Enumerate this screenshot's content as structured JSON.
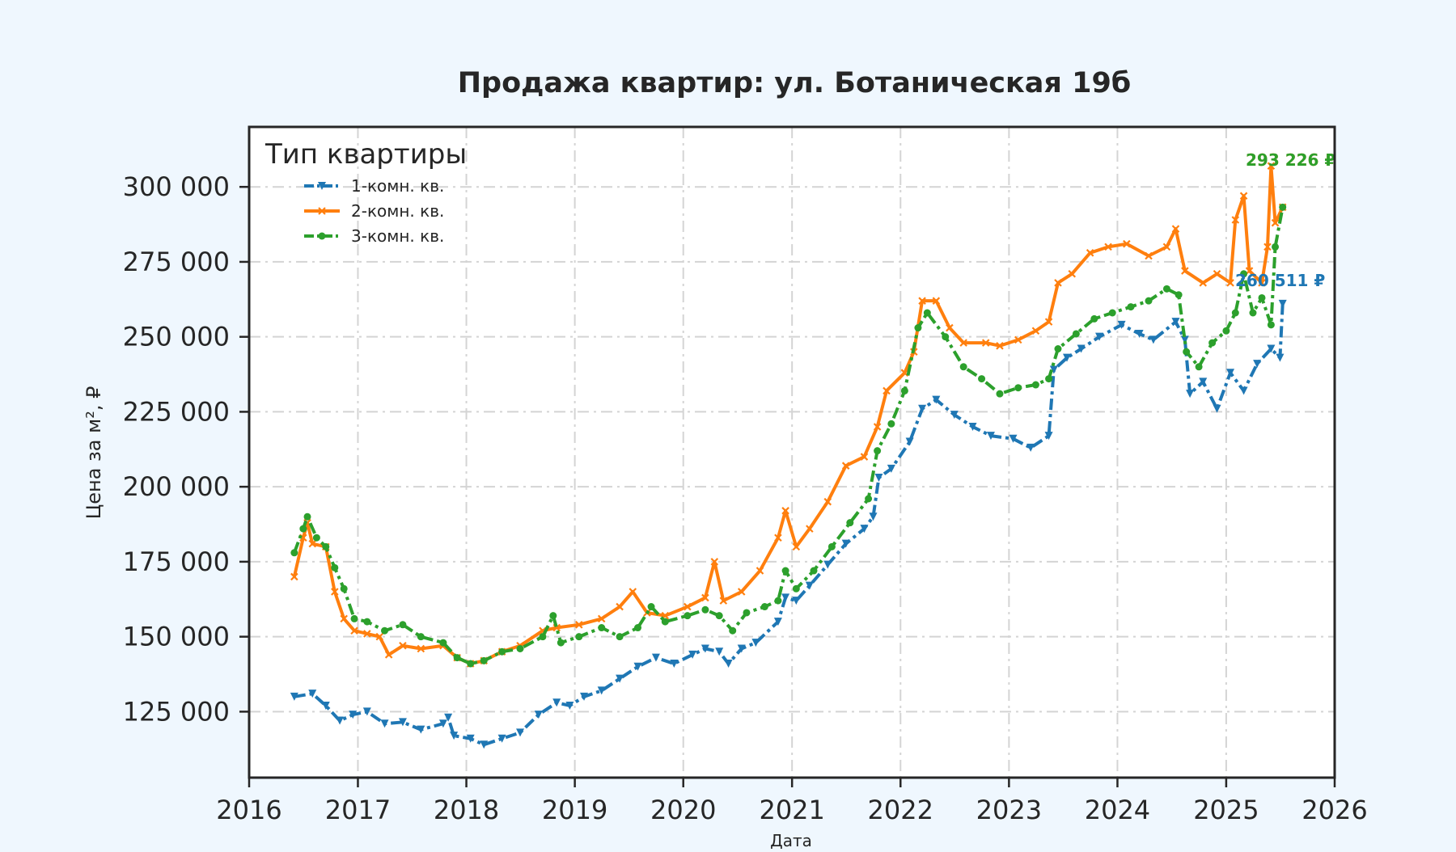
{
  "colors": {
    "background": "#eff7fe",
    "plot_background": "#ffffff",
    "grid": "#d4d4d4",
    "axis": "#262626",
    "text": "#262626"
  },
  "chart_data": {
    "type": "line",
    "title": "Продажа квартир: ул. Ботаническая 19б",
    "xlabel": "Дата",
    "ylabel": "Цена за м², ₽",
    "x_type": "date",
    "xlim": [
      "2016-01-01",
      "2026-01-01"
    ],
    "ylim": [
      103000,
      320000
    ],
    "x_ticks": [
      "2016",
      "2017",
      "2018",
      "2019",
      "2020",
      "2021",
      "2022",
      "2023",
      "2024",
      "2025",
      "2026"
    ],
    "y_ticks": [
      {
        "value": 125000,
        "label": "125 000"
      },
      {
        "value": 150000,
        "label": "150 000"
      },
      {
        "value": 175000,
        "label": "175 000"
      },
      {
        "value": 200000,
        "label": "200 000"
      },
      {
        "value": 225000,
        "label": "225 000"
      },
      {
        "value": 250000,
        "label": "250 000"
      },
      {
        "value": 275000,
        "label": "275 000"
      },
      {
        "value": 300000,
        "label": "300 000"
      }
    ],
    "grid": true,
    "legend": {
      "title": "Тип квартиры",
      "position": "top-left"
    },
    "series": [
      {
        "name": "1-комн. кв.",
        "color": "#1f77b4",
        "marker": "triangle-down",
        "end_label": "260 511 ₽",
        "points": [
          [
            "2016-06-01",
            130000
          ],
          [
            "2016-08-01",
            131000
          ],
          [
            "2016-09-15",
            127000
          ],
          [
            "2016-11-01",
            122000
          ],
          [
            "2016-12-15",
            124000
          ],
          [
            "2017-02-01",
            125000
          ],
          [
            "2017-04-01",
            121000
          ],
          [
            "2017-06-01",
            121500
          ],
          [
            "2017-08-01",
            119000
          ],
          [
            "2017-10-15",
            121000
          ],
          [
            "2017-11-01",
            123000
          ],
          [
            "2017-11-20",
            117000
          ],
          [
            "2018-01-15",
            116000
          ],
          [
            "2018-03-01",
            114000
          ],
          [
            "2018-05-01",
            116000
          ],
          [
            "2018-07-01",
            118000
          ],
          [
            "2018-09-01",
            124000
          ],
          [
            "2018-11-01",
            128000
          ],
          [
            "2018-12-15",
            127000
          ],
          [
            "2019-02-01",
            130000
          ],
          [
            "2019-04-01",
            132000
          ],
          [
            "2019-06-01",
            136000
          ],
          [
            "2019-08-01",
            140000
          ],
          [
            "2019-10-01",
            143000
          ],
          [
            "2019-12-01",
            141000
          ],
          [
            "2020-02-01",
            144000
          ],
          [
            "2020-03-15",
            146000
          ],
          [
            "2020-05-01",
            145000
          ],
          [
            "2020-06-01",
            141000
          ],
          [
            "2020-07-15",
            146000
          ],
          [
            "2020-09-01",
            148000
          ],
          [
            "2020-11-15",
            155000
          ],
          [
            "2020-12-10",
            163000
          ],
          [
            "2021-01-15",
            162000
          ],
          [
            "2021-03-01",
            167000
          ],
          [
            "2021-05-01",
            174000
          ],
          [
            "2021-07-01",
            181000
          ],
          [
            "2021-09-01",
            186000
          ],
          [
            "2021-10-01",
            190000
          ],
          [
            "2021-10-20",
            203000
          ],
          [
            "2021-12-01",
            206000
          ],
          [
            "2022-02-01",
            215000
          ],
          [
            "2022-03-15",
            226000
          ],
          [
            "2022-05-01",
            229000
          ],
          [
            "2022-07-01",
            224000
          ],
          [
            "2022-09-01",
            220000
          ],
          [
            "2022-11-01",
            217000
          ],
          [
            "2023-01-15",
            216000
          ],
          [
            "2023-03-15",
            213000
          ],
          [
            "2023-05-15",
            217000
          ],
          [
            "2023-06-01",
            239000
          ],
          [
            "2023-07-15",
            243000
          ],
          [
            "2023-09-01",
            246000
          ],
          [
            "2023-11-01",
            250000
          ],
          [
            "2024-01-15",
            254000
          ],
          [
            "2024-03-15",
            251000
          ],
          [
            "2024-05-01",
            249000
          ],
          [
            "2024-07-15",
            255000
          ],
          [
            "2024-08-15",
            249000
          ],
          [
            "2024-09-01",
            231000
          ],
          [
            "2024-10-15",
            235000
          ],
          [
            "2024-12-01",
            226000
          ],
          [
            "2025-01-15",
            238000
          ],
          [
            "2025-03-01",
            232000
          ],
          [
            "2025-04-15",
            241000
          ],
          [
            "2025-06-01",
            246000
          ],
          [
            "2025-07-01",
            243000
          ],
          [
            "2025-07-10",
            261000
          ]
        ]
      },
      {
        "name": "2-комн. кв.",
        "color": "#ff7f0e",
        "marker": "x",
        "end_label": "293 226 ₽",
        "points": [
          [
            "2016-06-01",
            170000
          ],
          [
            "2016-07-01",
            183000
          ],
          [
            "2016-07-15",
            188000
          ],
          [
            "2016-08-01",
            181000
          ],
          [
            "2016-09-15",
            180000
          ],
          [
            "2016-10-15",
            165000
          ],
          [
            "2016-11-15",
            156000
          ],
          [
            "2016-12-20",
            152000
          ],
          [
            "2017-02-01",
            151000
          ],
          [
            "2017-03-15",
            150000
          ],
          [
            "2017-04-15",
            144000
          ],
          [
            "2017-06-01",
            147000
          ],
          [
            "2017-08-01",
            146000
          ],
          [
            "2017-10-15",
            147000
          ],
          [
            "2017-12-01",
            143000
          ],
          [
            "2018-01-15",
            141000
          ],
          [
            "2018-03-01",
            142000
          ],
          [
            "2018-05-01",
            145000
          ],
          [
            "2018-07-01",
            147000
          ],
          [
            "2018-09-15",
            152000
          ],
          [
            "2018-11-01",
            153000
          ],
          [
            "2019-01-15",
            154000
          ],
          [
            "2019-04-01",
            156000
          ],
          [
            "2019-06-01",
            160000
          ],
          [
            "2019-07-15",
            165000
          ],
          [
            "2019-09-01",
            158000
          ],
          [
            "2019-11-01",
            157000
          ],
          [
            "2020-01-15",
            160000
          ],
          [
            "2020-03-15",
            163000
          ],
          [
            "2020-04-15",
            175000
          ],
          [
            "2020-05-15",
            162000
          ],
          [
            "2020-07-15",
            165000
          ],
          [
            "2020-09-15",
            172000
          ],
          [
            "2020-11-15",
            183000
          ],
          [
            "2020-12-10",
            192000
          ],
          [
            "2021-01-15",
            180000
          ],
          [
            "2021-03-01",
            186000
          ],
          [
            "2021-05-01",
            195000
          ],
          [
            "2021-07-01",
            207000
          ],
          [
            "2021-09-01",
            210000
          ],
          [
            "2021-10-15",
            220000
          ],
          [
            "2021-11-15",
            232000
          ],
          [
            "2022-01-15",
            238000
          ],
          [
            "2022-02-15",
            245000
          ],
          [
            "2022-03-15",
            262000
          ],
          [
            "2022-05-01",
            262000
          ],
          [
            "2022-06-15",
            253000
          ],
          [
            "2022-08-01",
            248000
          ],
          [
            "2022-10-15",
            248000
          ],
          [
            "2022-12-01",
            247000
          ],
          [
            "2023-02-01",
            249000
          ],
          [
            "2023-04-01",
            252000
          ],
          [
            "2023-05-15",
            255000
          ],
          [
            "2023-06-15",
            268000
          ],
          [
            "2023-08-01",
            271000
          ],
          [
            "2023-10-01",
            278000
          ],
          [
            "2023-12-01",
            280000
          ],
          [
            "2024-02-01",
            281000
          ],
          [
            "2024-04-15",
            277000
          ],
          [
            "2024-06-15",
            280000
          ],
          [
            "2024-07-15",
            286000
          ],
          [
            "2024-08-15",
            272000
          ],
          [
            "2024-10-15",
            268000
          ],
          [
            "2024-12-01",
            271000
          ],
          [
            "2025-01-15",
            268000
          ],
          [
            "2025-02-01",
            289000
          ],
          [
            "2025-03-01",
            297000
          ],
          [
            "2025-03-20",
            272000
          ],
          [
            "2025-05-01",
            268000
          ],
          [
            "2025-05-20",
            280000
          ],
          [
            "2025-06-01",
            307000
          ],
          [
            "2025-06-15",
            288000
          ],
          [
            "2025-07-10",
            293226
          ]
        ]
      },
      {
        "name": "3-комн. кв.",
        "color": "#2ca02c",
        "marker": "circle",
        "end_label": "293 226 ₽",
        "points": [
          [
            "2016-06-01",
            178000
          ],
          [
            "2016-07-01",
            186000
          ],
          [
            "2016-07-15",
            190000
          ],
          [
            "2016-08-15",
            183000
          ],
          [
            "2016-09-15",
            180000
          ],
          [
            "2016-10-15",
            173000
          ],
          [
            "2016-11-15",
            166000
          ],
          [
            "2016-12-20",
            156000
          ],
          [
            "2017-02-01",
            155000
          ],
          [
            "2017-04-01",
            152000
          ],
          [
            "2017-06-01",
            154000
          ],
          [
            "2017-08-01",
            150000
          ],
          [
            "2017-10-15",
            148000
          ],
          [
            "2017-12-01",
            143000
          ],
          [
            "2018-01-15",
            141000
          ],
          [
            "2018-03-01",
            142000
          ],
          [
            "2018-05-01",
            145000
          ],
          [
            "2018-07-01",
            146000
          ],
          [
            "2018-09-15",
            150000
          ],
          [
            "2018-10-20",
            157000
          ],
          [
            "2018-11-15",
            148000
          ],
          [
            "2019-01-15",
            150000
          ],
          [
            "2019-04-01",
            153000
          ],
          [
            "2019-06-01",
            150000
          ],
          [
            "2019-08-01",
            153000
          ],
          [
            "2019-09-15",
            160000
          ],
          [
            "2019-11-01",
            155000
          ],
          [
            "2020-01-15",
            157000
          ],
          [
            "2020-03-15",
            159000
          ],
          [
            "2020-05-01",
            157000
          ],
          [
            "2020-06-15",
            152000
          ],
          [
            "2020-08-01",
            158000
          ],
          [
            "2020-10-01",
            160000
          ],
          [
            "2020-11-15",
            162000
          ],
          [
            "2020-12-10",
            172000
          ],
          [
            "2021-01-15",
            166000
          ],
          [
            "2021-03-15",
            172000
          ],
          [
            "2021-05-15",
            180000
          ],
          [
            "2021-07-15",
            188000
          ],
          [
            "2021-09-15",
            196000
          ],
          [
            "2021-10-15",
            212000
          ],
          [
            "2021-12-01",
            221000
          ],
          [
            "2022-01-15",
            232000
          ],
          [
            "2022-03-01",
            253000
          ],
          [
            "2022-04-01",
            258000
          ],
          [
            "2022-06-01",
            250000
          ],
          [
            "2022-08-01",
            240000
          ],
          [
            "2022-10-01",
            236000
          ],
          [
            "2022-12-01",
            231000
          ],
          [
            "2023-02-01",
            233000
          ],
          [
            "2023-04-01",
            234000
          ],
          [
            "2023-05-15",
            236000
          ],
          [
            "2023-06-15",
            246000
          ],
          [
            "2023-08-15",
            251000
          ],
          [
            "2023-10-15",
            256000
          ],
          [
            "2023-12-15",
            258000
          ],
          [
            "2024-02-15",
            260000
          ],
          [
            "2024-04-15",
            262000
          ],
          [
            "2024-06-15",
            266000
          ],
          [
            "2024-07-25",
            264000
          ],
          [
            "2024-08-20",
            245000
          ],
          [
            "2024-10-01",
            240000
          ],
          [
            "2024-11-15",
            248000
          ],
          [
            "2025-01-01",
            252000
          ],
          [
            "2025-02-01",
            258000
          ],
          [
            "2025-03-01",
            271000
          ],
          [
            "2025-04-01",
            258000
          ],
          [
            "2025-05-01",
            263000
          ],
          [
            "2025-06-01",
            254000
          ],
          [
            "2025-06-15",
            280000
          ],
          [
            "2025-07-10",
            293226
          ]
        ]
      }
    ]
  }
}
